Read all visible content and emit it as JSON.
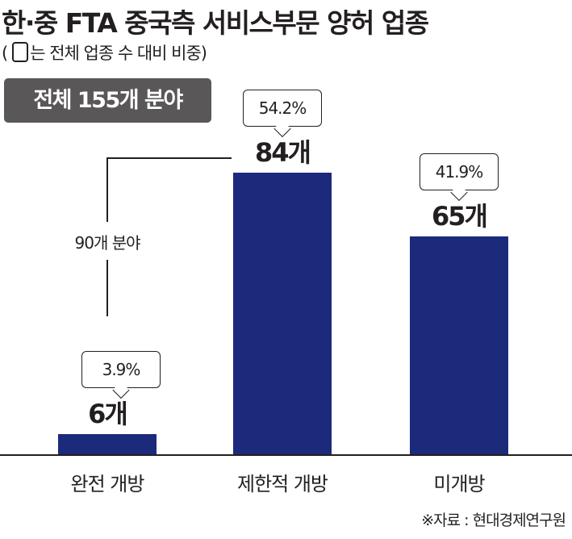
{
  "chart_data": {
    "type": "bar",
    "title": "한·중 FTA 중국측 서비스부문 양허 업종",
    "subtitle_prefix": "(",
    "subtitle": "는 전체 업종 수 대비 비중)",
    "total_label": "전체 155개 분야",
    "categories": [
      "완전 개방",
      "제한적 개방",
      "미개방"
    ],
    "values": [
      6,
      84,
      65
    ],
    "value_labels": [
      "6개",
      "84개",
      "65개"
    ],
    "percent_labels": [
      "3.9%",
      "54.2%",
      "41.9%"
    ],
    "bracket_label": "90개 분야",
    "source": "※자료 : 현대경제연구원",
    "bar_color": "#1c2a7c",
    "ylim": [
      0,
      90
    ]
  }
}
